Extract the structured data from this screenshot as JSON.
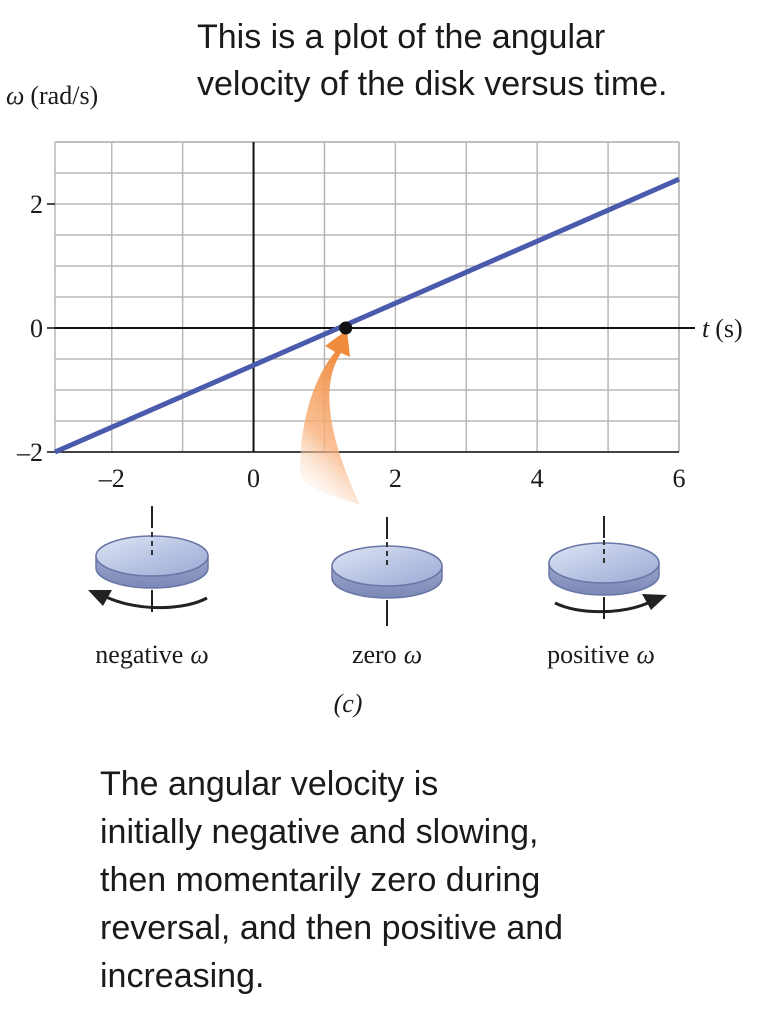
{
  "captions": {
    "top": [
      "This is a plot of the angular",
      "velocity of the disk versus time."
    ],
    "bottom": [
      "The angular velocity is",
      "initially negative and slowing,",
      "then momentarily zero during",
      "reversal, and then positive and",
      "increasing."
    ]
  },
  "chart_data": {
    "type": "line",
    "title": "",
    "ylabel_symbol": "ω",
    "ylabel_unit": "(rad/s)",
    "xlabel_symbol": "t",
    "xlabel_unit": "(s)",
    "xlim": [
      -2.8,
      6
    ],
    "ylim": [
      -2,
      3
    ],
    "x_ticks": [
      -2,
      0,
      2,
      4,
      6
    ],
    "x_tick_labels": [
      "–2",
      "0",
      "2",
      "4",
      "6"
    ],
    "y_ticks": [
      -2,
      0,
      2
    ],
    "y_tick_labels": [
      "–2",
      "0",
      "2"
    ],
    "grid": true,
    "series": [
      {
        "x": [
          -2.8,
          6
        ],
        "y": [
          -2.0,
          2.4
        ]
      }
    ],
    "zero_crossing": {
      "x": 1.3,
      "y": 0
    },
    "line_color": "#4a5aac",
    "grid_color": "#b8b8b8",
    "arrow_color": "#f08a3c"
  },
  "disks": [
    {
      "label_word": "negative",
      "label_symbol": "ω",
      "rotation": "counterclockwise"
    },
    {
      "label_word": "zero",
      "label_symbol": "ω",
      "rotation": "none"
    },
    {
      "label_word": "positive",
      "label_symbol": "ω",
      "rotation": "clockwise"
    }
  ],
  "panel_label": "(c)"
}
